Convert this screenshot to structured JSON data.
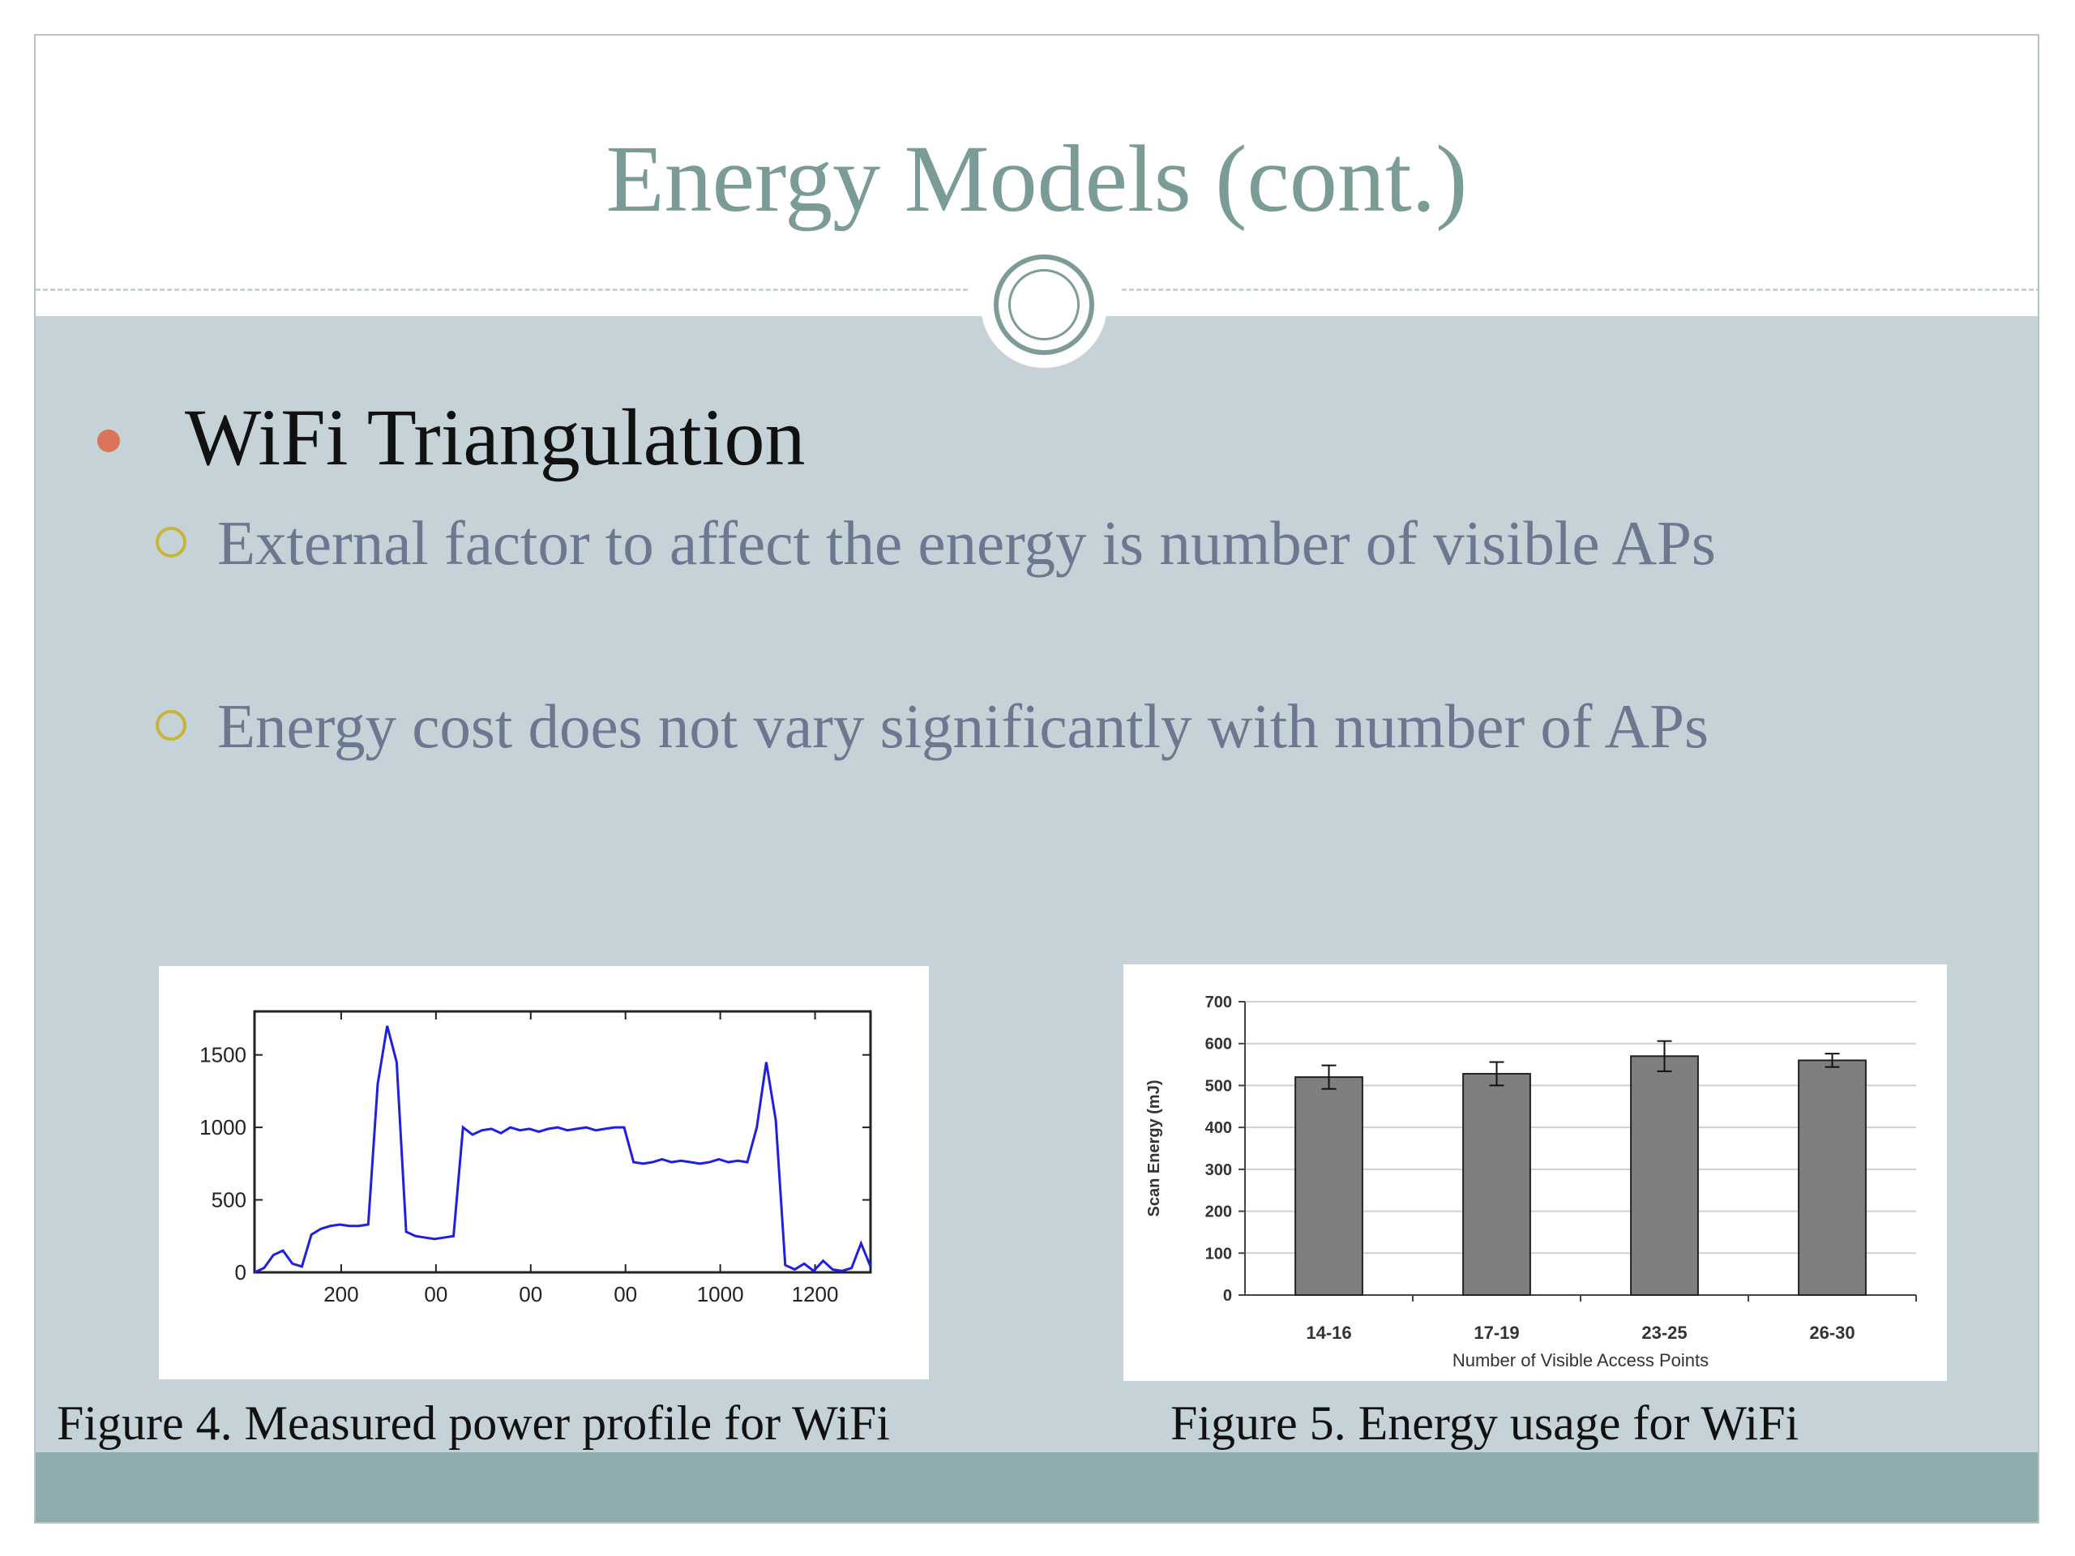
{
  "slide": {
    "title": "Energy Models (cont.)",
    "bullet": "WiFi Triangulation",
    "sub_bullets": [
      "External factor to affect the energy is number of visible APs",
      "Energy cost does not vary significantly with number of APs"
    ],
    "colors": {
      "title": "#7b9c96",
      "content_bg": "#c5d2d7",
      "footer_band": "#8fabae",
      "bullet_dot": "#d9765a",
      "sub_bullet_ring": "#c9b43a",
      "sub_text": "#6b7890"
    }
  },
  "figures": {
    "fig4_caption": "Figure 4. Measured power profile for WiFi",
    "fig5_caption": "Figure 5. Energy usage for WiFi"
  },
  "chart_data": [
    {
      "type": "line",
      "line_color": "#1f1fe0",
      "x_tick_labels": [
        "200",
        "00",
        "00",
        "00",
        "1000",
        "1200"
      ],
      "y_ticks": [
        0,
        500,
        1000,
        1500
      ],
      "ylim": [
        0,
        1800
      ],
      "series": [
        {
          "x": [
            0,
            20,
            40,
            60,
            80,
            100,
            120,
            140,
            160,
            180,
            200,
            220,
            240,
            260,
            280,
            300,
            320,
            340,
            360,
            380,
            400,
            420,
            440,
            460,
            480,
            500,
            520,
            540,
            560,
            580,
            600,
            620,
            640,
            660,
            680,
            700,
            720,
            740,
            760,
            780,
            800,
            820,
            840,
            860,
            880,
            900,
            920,
            940,
            960,
            980,
            1000,
            1020,
            1040,
            1060,
            1080,
            1100,
            1120,
            1140,
            1160,
            1180,
            1200,
            1220,
            1240,
            1260,
            1280,
            1300
          ],
          "y": [
            0,
            30,
            120,
            150,
            60,
            40,
            260,
            300,
            320,
            330,
            320,
            320,
            330,
            1300,
            1700,
            1450,
            280,
            250,
            240,
            230,
            240,
            250,
            1000,
            950,
            980,
            990,
            960,
            1000,
            980,
            990,
            970,
            990,
            1000,
            980,
            990,
            1000,
            980,
            990,
            1000,
            1000,
            760,
            750,
            760,
            780,
            760,
            770,
            760,
            750,
            760,
            780,
            760,
            770,
            760,
            1000,
            1450,
            1050,
            50,
            20,
            60,
            10,
            80,
            20,
            10,
            30,
            200,
            40
          ]
        }
      ]
    },
    {
      "type": "bar",
      "categories": [
        "14-16",
        "17-19",
        "23-25",
        "26-30"
      ],
      "values": [
        520,
        528,
        570,
        560
      ],
      "error": [
        28,
        28,
        36,
        16
      ],
      "xlabel": "Number of Visible Access Points",
      "ylabel": "Scan Energy (mJ)",
      "ylim": [
        0,
        700
      ],
      "y_ticks": [
        0,
        100,
        200,
        300,
        400,
        500,
        600,
        700
      ],
      "grid": true,
      "bar_color": "#7f7f7f"
    }
  ]
}
